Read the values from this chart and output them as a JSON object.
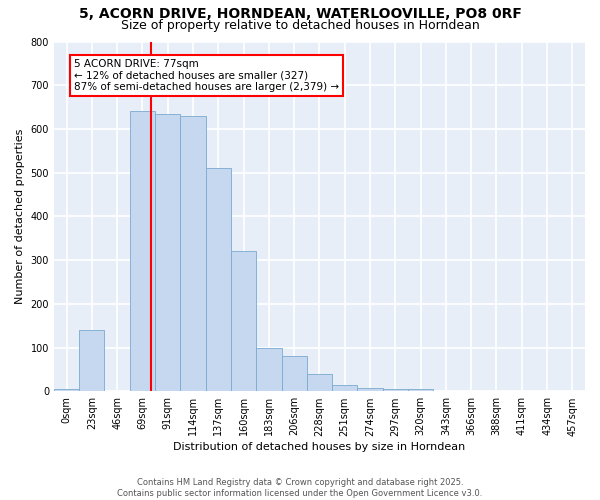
{
  "title_line1": "5, ACORN DRIVE, HORNDEAN, WATERLOOVILLE, PO8 0RF",
  "title_line2": "Size of property relative to detached houses in Horndean",
  "xlabel": "Distribution of detached houses by size in Horndean",
  "ylabel": "Number of detached properties",
  "categories": [
    "0sqm",
    "23sqm",
    "46sqm",
    "69sqm",
    "91sqm",
    "114sqm",
    "137sqm",
    "160sqm",
    "183sqm",
    "206sqm",
    "228sqm",
    "251sqm",
    "274sqm",
    "297sqm",
    "320sqm",
    "343sqm",
    "366sqm",
    "388sqm",
    "411sqm",
    "434sqm",
    "457sqm"
  ],
  "bar_values": [
    5,
    140,
    0,
    640,
    635,
    630,
    510,
    320,
    100,
    80,
    40,
    15,
    8,
    5,
    5,
    0,
    0,
    0,
    0,
    0,
    0
  ],
  "bar_color": "#c5d8f0",
  "bar_edge_color": "#7aaad0",
  "vline_x_index": 3,
  "vline_color": "red",
  "annotation_text": "5 ACORN DRIVE: 77sqm\n← 12% of detached houses are smaller (327)\n87% of semi-detached houses are larger (2,379) →",
  "annotation_box_color": "white",
  "annotation_box_edge_color": "red",
  "ylim": [
    0,
    800
  ],
  "yticks": [
    0,
    100,
    200,
    300,
    400,
    500,
    600,
    700,
    800
  ],
  "background_color": "#e8eef8",
  "grid_color": "white",
  "footer_text": "Contains HM Land Registry data © Crown copyright and database right 2025.\nContains public sector information licensed under the Open Government Licence v3.0.",
  "title_fontsize": 10,
  "subtitle_fontsize": 9,
  "axis_label_fontsize": 8,
  "tick_fontsize": 7,
  "annotation_fontsize": 7.5,
  "footer_fontsize": 6
}
